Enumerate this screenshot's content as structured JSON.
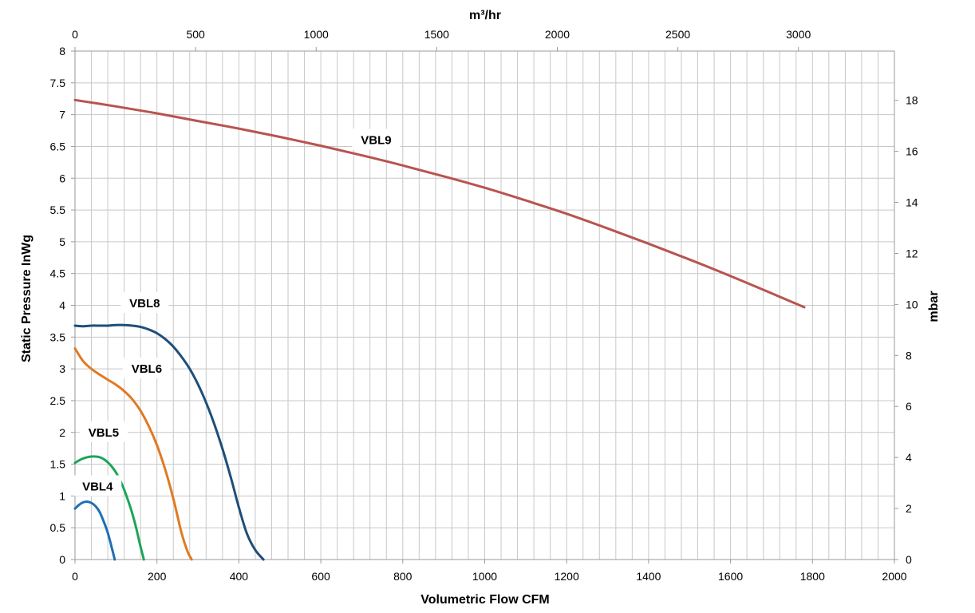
{
  "chart_data": {
    "type": "line",
    "title": "",
    "xlabel": "Volumetric Flow CFM",
    "ylabel": "Static Pressure InWg",
    "x2label": "m³/hr",
    "y2label": "mbar",
    "xlim": [
      0,
      2000
    ],
    "ylim": [
      0,
      8
    ],
    "x2lim": [
      0,
      3398
    ],
    "y2lim": [
      0,
      19.93
    ],
    "x_ticks": [
      "0",
      "200",
      "400",
      "600",
      "800",
      "1000",
      "1200",
      "1400",
      "1600",
      "1800",
      "2000"
    ],
    "y_ticks": [
      "0",
      "0.5",
      "1",
      "1.5",
      "2",
      "2.5",
      "3",
      "3.5",
      "4",
      "4.5",
      "5",
      "5.5",
      "6",
      "6.5",
      "7",
      "7.5",
      "8"
    ],
    "x2_ticks": [
      "0",
      "500",
      "1000",
      "1500",
      "2000",
      "2500",
      "3000"
    ],
    "y2_ticks": [
      "0",
      "2",
      "4",
      "6",
      "8",
      "10",
      "12",
      "14",
      "16",
      "18"
    ],
    "grid": true,
    "series": [
      {
        "name": "VBL4",
        "color": "#1f6fb5",
        "x": [
          0,
          10,
          20,
          30,
          40,
          50,
          60,
          70,
          80,
          90,
          97
        ],
        "y": [
          0.8,
          0.86,
          0.9,
          0.91,
          0.89,
          0.84,
          0.75,
          0.6,
          0.42,
          0.18,
          0
        ]
      },
      {
        "name": "VBL5",
        "color": "#1da45a",
        "x": [
          0,
          10,
          20,
          30,
          40,
          50,
          60,
          70,
          80,
          90,
          100,
          110,
          120,
          130,
          140,
          150,
          160,
          168
        ],
        "y": [
          1.52,
          1.56,
          1.59,
          1.61,
          1.62,
          1.62,
          1.61,
          1.58,
          1.53,
          1.46,
          1.37,
          1.25,
          1.1,
          0.92,
          0.72,
          0.48,
          0.2,
          0
        ]
      },
      {
        "name": "VBL6",
        "color": "#e07a22",
        "x": [
          0,
          20,
          40,
          60,
          80,
          100,
          120,
          140,
          160,
          180,
          200,
          220,
          240,
          260,
          275,
          285
        ],
        "y": [
          3.32,
          3.12,
          3.0,
          2.91,
          2.83,
          2.75,
          2.65,
          2.52,
          2.34,
          2.1,
          1.8,
          1.42,
          0.96,
          0.42,
          0.12,
          0
        ]
      },
      {
        "name": "VBL8",
        "color": "#1f4e79",
        "x": [
          0,
          20,
          40,
          60,
          80,
          100,
          120,
          140,
          160,
          180,
          200,
          220,
          240,
          260,
          280,
          300,
          320,
          340,
          360,
          380,
          400,
          420,
          440,
          460
        ],
        "y": [
          3.68,
          3.67,
          3.68,
          3.68,
          3.68,
          3.69,
          3.69,
          3.68,
          3.66,
          3.62,
          3.56,
          3.47,
          3.35,
          3.19,
          3.0,
          2.76,
          2.47,
          2.13,
          1.74,
          1.3,
          0.82,
          0.4,
          0.15,
          0
        ]
      },
      {
        "name": "VBL9",
        "color": "#b85450",
        "x": [
          0,
          100,
          200,
          300,
          400,
          500,
          600,
          700,
          800,
          900,
          1000,
          1100,
          1200,
          1300,
          1400,
          1500,
          1600,
          1700,
          1780
        ],
        "y": [
          7.23,
          7.13,
          7.02,
          6.9,
          6.78,
          6.65,
          6.51,
          6.36,
          6.2,
          6.03,
          5.85,
          5.65,
          5.44,
          5.21,
          4.97,
          4.72,
          4.46,
          4.19,
          3.97
        ]
      }
    ],
    "curve_labels": [
      "VBL9",
      "VBL8",
      "VBL6",
      "VBL5",
      "VBL4"
    ]
  }
}
